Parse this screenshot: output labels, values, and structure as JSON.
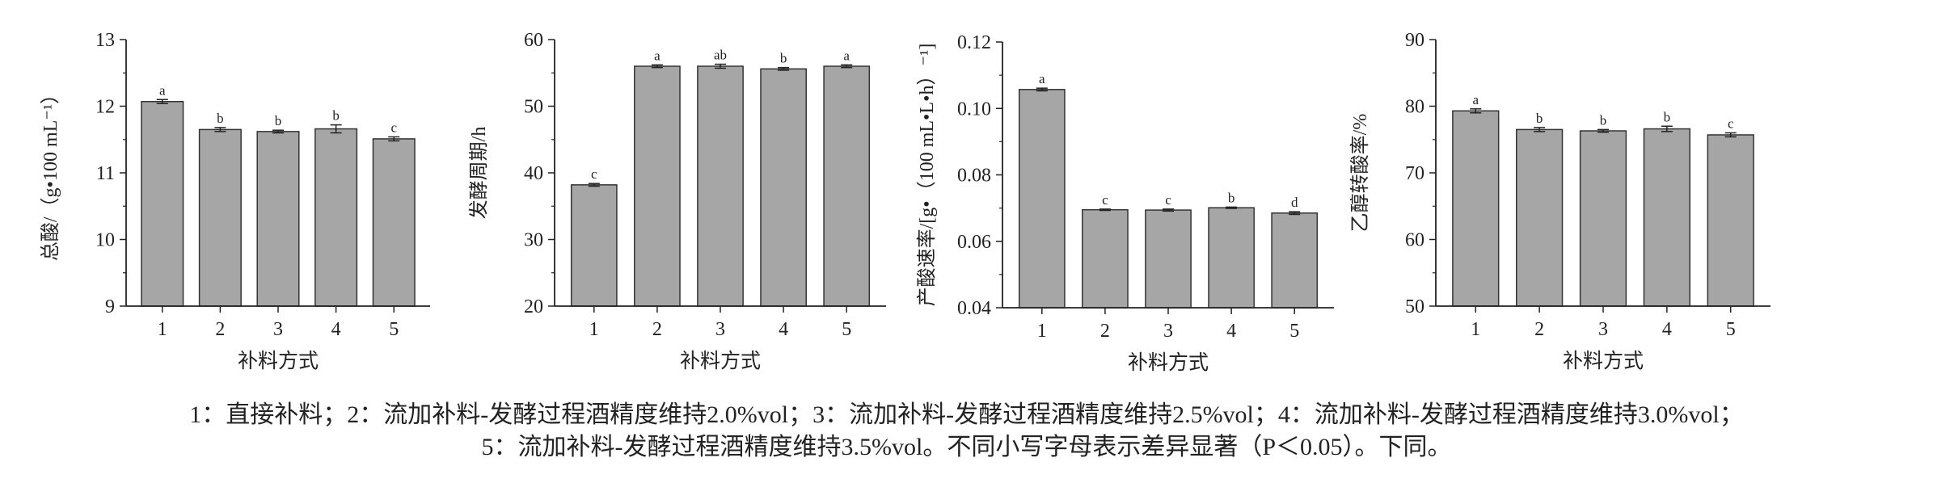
{
  "chart_data": [
    {
      "type": "bar",
      "categories": [
        "1",
        "2",
        "3",
        "4",
        "5"
      ],
      "values": [
        12.07,
        11.65,
        11.62,
        11.66,
        11.51
      ],
      "errors": [
        0.03,
        0.03,
        0.02,
        0.06,
        0.03
      ],
      "labels": [
        "a",
        "b",
        "b",
        "b",
        "c"
      ],
      "ylabel": "总酸/（g•100 mL⁻¹）",
      "xlabel": "补料方式",
      "ylim": [
        9,
        13
      ],
      "yticks": [
        9,
        10,
        11,
        12,
        13
      ],
      "color": "#a6a6a6"
    },
    {
      "type": "bar",
      "categories": [
        "1",
        "2",
        "3",
        "4",
        "5"
      ],
      "values": [
        38.2,
        56.0,
        56.0,
        55.6,
        56.0
      ],
      "errors": [
        0.2,
        0.2,
        0.3,
        0.2,
        0.2
      ],
      "labels": [
        "c",
        "a",
        "ab",
        "b",
        "a"
      ],
      "ylabel": "发酵周期/h",
      "xlabel": "补料方式",
      "ylim": [
        20,
        60
      ],
      "yticks": [
        20,
        30,
        40,
        50,
        60
      ],
      "color": "#a6a6a6"
    },
    {
      "type": "bar",
      "categories": [
        "1",
        "2",
        "3",
        "4",
        "5"
      ],
      "values": [
        0.1057,
        0.0695,
        0.0694,
        0.0701,
        0.0685
      ],
      "errors": [
        0.0004,
        0.0002,
        0.0003,
        0.0002,
        0.0004
      ],
      "labels": [
        "a",
        "c",
        "c",
        "b",
        "d"
      ],
      "ylabel": "产酸速率/[g•（100 mL•L•h）⁻¹]",
      "xlabel": "补料方式",
      "ylim": [
        0.04,
        0.12
      ],
      "yticks": [
        "0.04",
        "0.06",
        "0.08",
        "0.10",
        "0.12"
      ],
      "color": "#a6a6a6"
    },
    {
      "type": "bar",
      "categories": [
        "1",
        "2",
        "3",
        "4",
        "5"
      ],
      "values": [
        79.3,
        76.5,
        76.3,
        76.6,
        75.7
      ],
      "errors": [
        0.3,
        0.3,
        0.2,
        0.4,
        0.3
      ],
      "labels": [
        "a",
        "b",
        "b",
        "b",
        "c"
      ],
      "ylabel": "乙醇转酸率/%",
      "xlabel": "补料方式",
      "ylim": [
        50,
        90
      ],
      "yticks": [
        50,
        60,
        70,
        80,
        90
      ],
      "color": "#a6a6a6"
    }
  ],
  "caption": {
    "line1": "1：直接补料；2：流加补料-发酵过程酒精度维持2.0%vol；3：流加补料-发酵过程酒精度维持2.5%vol；4：流加补料-发酵过程酒精度维持3.0%vol；",
    "line2": "5：流加补料-发酵过程酒精度维持3.5%vol。不同小写字母表示差异显著（P＜0.05）。下同。"
  }
}
